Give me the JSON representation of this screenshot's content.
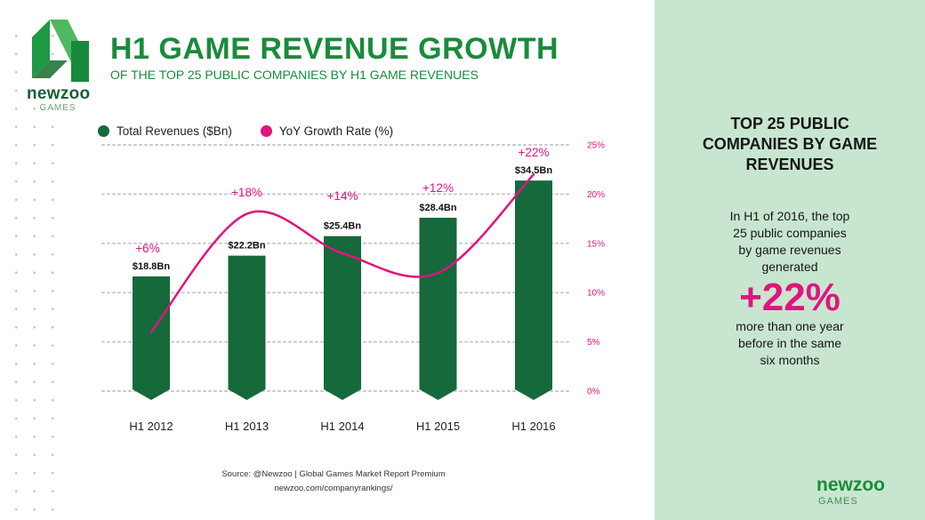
{
  "brand": {
    "logo_word": "newzoo",
    "logo_sub": "GAMES"
  },
  "header": {
    "title": "H1 GAME REVENUE GROWTH",
    "subtitle": "OF THE TOP 25 PUBLIC COMPANIES BY H1 GAME REVENUES"
  },
  "legend": {
    "revenues_label": "Total Revenues ($Bn)",
    "growth_label": "YoY Growth Rate (%)"
  },
  "colors": {
    "bar": "#16693a",
    "line": "#e0147e",
    "accent_green": "#1a8b3c",
    "panel": "#c8e6cf"
  },
  "chart_data": {
    "type": "bar",
    "title": "H1 GAME REVENUE GROWTH",
    "subtitle": "OF THE TOP 25 PUBLIC COMPANIES BY H1 GAME REVENUES",
    "categories": [
      "H1 2012",
      "H1 2013",
      "H1 2014",
      "H1 2015",
      "H1 2016"
    ],
    "series": [
      {
        "name": "Total Revenues ($Bn)",
        "type": "bar",
        "values": [
          18.8,
          22.2,
          25.4,
          28.4,
          34.5
        ],
        "labels": [
          "$18.8Bn",
          "$22.2Bn",
          "$25.4Bn",
          "$28.4Bn",
          "$34.5Bn"
        ]
      },
      {
        "name": "YoY Growth Rate (%)",
        "type": "line",
        "axis": "right",
        "values": [
          6,
          18,
          14,
          12,
          22
        ],
        "labels": [
          "+6%",
          "+18%",
          "+14%",
          "+12%",
          "+22%"
        ]
      }
    ],
    "y2_ticks": [
      "0%",
      "5%",
      "10%",
      "15%",
      "20%",
      "25%"
    ],
    "y2lim": [
      0,
      25
    ],
    "legend": "top-left",
    "grid": true
  },
  "source": {
    "line1": "Source: @Newzoo | Global Games Market Report Premium",
    "line2": "newzoo.com/companyrankings/"
  },
  "panel": {
    "title_lines": [
      "TOP 25 PUBLIC",
      "COMPANIES BY GAME",
      "REVENUES"
    ],
    "body_lines": [
      "In H1 of 2016, the top",
      "25 public companies",
      "by game revenues",
      "generated"
    ],
    "big_value": "+22%",
    "after_lines": [
      "more than one year",
      "before in the same",
      "six months"
    ]
  }
}
